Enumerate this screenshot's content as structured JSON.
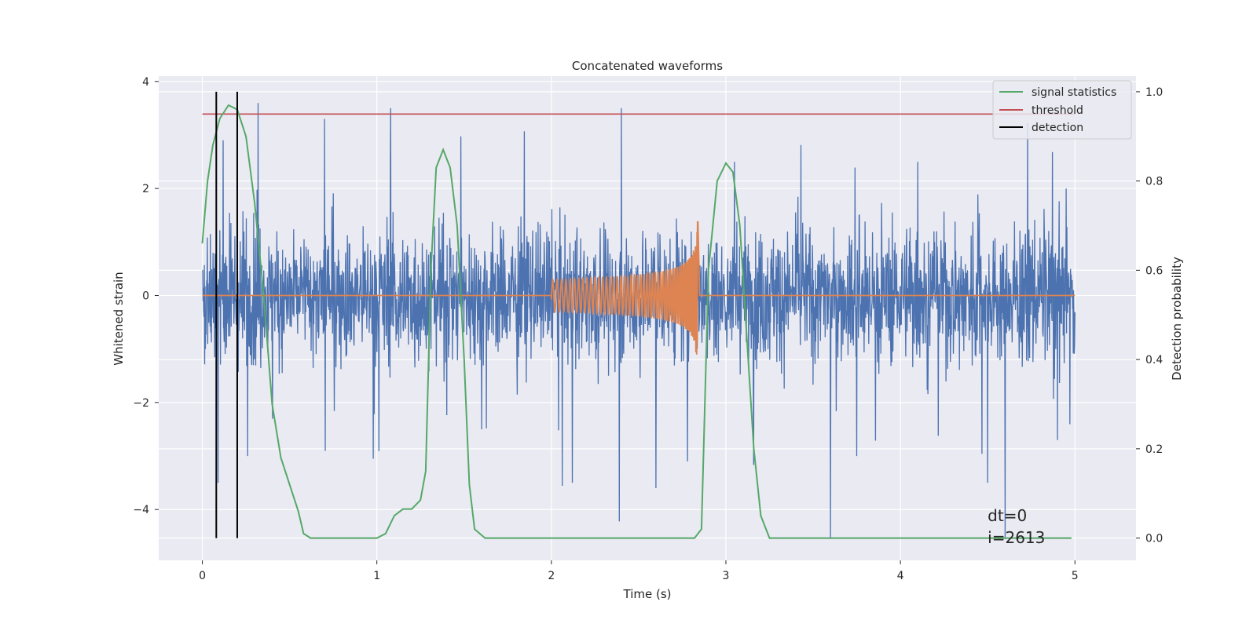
{
  "chart_data": {
    "type": "line",
    "title": "Concatenated waveforms",
    "xlabel": "Time (s)",
    "ylabel": "Whitened strain",
    "y2label": "Detection probability",
    "xlim": [
      -0.25,
      5.35
    ],
    "ylim": [
      -4.95,
      4.1
    ],
    "y2lim": [
      -0.05,
      1.035
    ],
    "xticks": [
      0,
      1,
      2,
      3,
      4,
      5
    ],
    "yticks": [
      4,
      2,
      0,
      -2,
      -4
    ],
    "y2ticks": [
      1.0,
      0.8,
      0.6,
      0.4,
      0.2,
      0.0
    ],
    "xtick_labels": [
      "0",
      "1",
      "2",
      "3",
      "4",
      "5"
    ],
    "ytick_labels": [
      "4",
      "2",
      "0",
      "−2",
      "−4"
    ],
    "y2tick_labels": [
      "1.0",
      "0.8",
      "0.6",
      "0.4",
      "0.2",
      "0.0"
    ],
    "grid": true,
    "background": "#eaeaf2",
    "strain": {
      "color": "#4c72b0",
      "t_start": 0.0,
      "t_end": 5.0,
      "typical_abs_max": 1.4,
      "spikes": [
        {
          "t": 0.09,
          "v": -3.5
        },
        {
          "t": 0.12,
          "v": 2.9
        },
        {
          "t": 0.2,
          "v": 3.7
        },
        {
          "t": 0.26,
          "v": -3.0
        },
        {
          "t": 0.7,
          "v": 3.3
        },
        {
          "t": 1.08,
          "v": 3.5
        },
        {
          "t": 0.98,
          "v": -3.05
        },
        {
          "t": 1.6,
          "v": -2.5
        },
        {
          "t": 2.12,
          "v": -3.5
        },
        {
          "t": 2.4,
          "v": 3.5
        },
        {
          "t": 2.6,
          "v": -3.6
        },
        {
          "t": 2.78,
          "v": -3.1
        },
        {
          "t": 3.05,
          "v": 2.5
        },
        {
          "t": 3.6,
          "v": -4.55
        },
        {
          "t": 3.75,
          "v": -3.0
        },
        {
          "t": 4.1,
          "v": 2.5
        },
        {
          "t": 4.5,
          "v": -3.5
        },
        {
          "t": 4.6,
          "v": -4.55
        },
        {
          "t": 4.9,
          "v": -2.7
        },
        {
          "t": 4.95,
          "v": 2.0
        }
      ]
    },
    "injected_signal": {
      "color": "#dd8452",
      "t_start": 2.0,
      "t_merger": 2.84,
      "peak_amplitude": 1.65,
      "description_visible": false
    },
    "signal_statistics": {
      "name": "signal statistics",
      "color": "#55a868",
      "axis": "right",
      "points": [
        [
          0.0,
          0.66
        ],
        [
          0.03,
          0.8
        ],
        [
          0.06,
          0.88
        ],
        [
          0.1,
          0.94
        ],
        [
          0.15,
          0.97
        ],
        [
          0.2,
          0.96
        ],
        [
          0.25,
          0.9
        ],
        [
          0.3,
          0.75
        ],
        [
          0.35,
          0.55
        ],
        [
          0.4,
          0.3
        ],
        [
          0.45,
          0.18
        ],
        [
          0.5,
          0.12
        ],
        [
          0.55,
          0.06
        ],
        [
          0.58,
          0.01
        ],
        [
          0.62,
          0.0
        ],
        [
          1.0,
          0.0
        ],
        [
          1.05,
          0.01
        ],
        [
          1.1,
          0.05
        ],
        [
          1.15,
          0.065
        ],
        [
          1.2,
          0.065
        ],
        [
          1.25,
          0.085
        ],
        [
          1.28,
          0.15
        ],
        [
          1.31,
          0.6
        ],
        [
          1.34,
          0.83
        ],
        [
          1.38,
          0.87
        ],
        [
          1.42,
          0.83
        ],
        [
          1.46,
          0.7
        ],
        [
          1.5,
          0.4
        ],
        [
          1.53,
          0.12
        ],
        [
          1.56,
          0.02
        ],
        [
          1.62,
          0.0
        ],
        [
          2.82,
          0.0
        ],
        [
          2.86,
          0.02
        ],
        [
          2.9,
          0.6
        ],
        [
          2.95,
          0.8
        ],
        [
          3.0,
          0.84
        ],
        [
          3.04,
          0.82
        ],
        [
          3.08,
          0.7
        ],
        [
          3.12,
          0.45
        ],
        [
          3.16,
          0.2
        ],
        [
          3.2,
          0.05
        ],
        [
          3.25,
          0.0
        ],
        [
          4.98,
          0.0
        ]
      ]
    },
    "threshold": {
      "name": "threshold",
      "color": "#c44e52",
      "value": 0.95,
      "t_start": 0.0,
      "t_end": 5.0
    },
    "detections": {
      "name": "detection",
      "color": "#000000",
      "times": [
        0.08,
        0.2
      ],
      "y_range": [
        0.0,
        1.0
      ]
    },
    "legend": {
      "placement": "top-right",
      "entries": [
        {
          "label": "signal statistics",
          "color": "#55a868"
        },
        {
          "label": "threshold",
          "color": "#c44e52"
        },
        {
          "label": "detection",
          "color": "#000000"
        }
      ]
    },
    "annotations": {
      "dt": "dt=0",
      "i": "i=2613",
      "at_t": 4.5,
      "at_y": -4.1
    }
  }
}
